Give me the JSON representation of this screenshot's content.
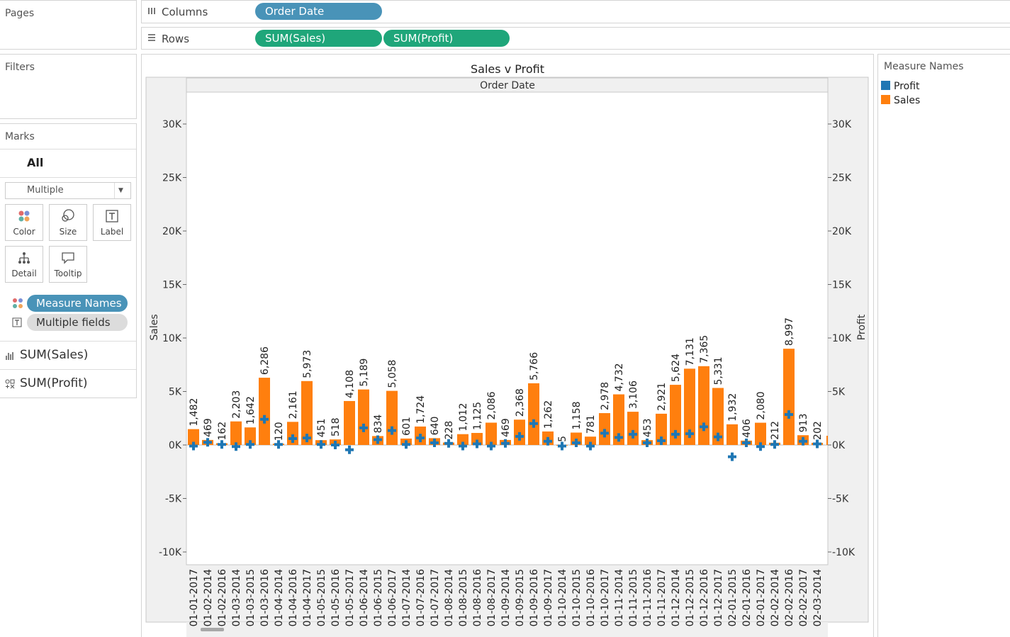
{
  "side": {
    "pages_title": "Pages",
    "filters_title": "Filters",
    "marks_title": "Marks",
    "marks_all": "All",
    "mark_type": "Multiple",
    "buttons": [
      "Color",
      "Size",
      "Label",
      "Detail",
      "Tooltip"
    ],
    "color_pill": "Measure Names",
    "label_pill": "Multiple fields",
    "rows": [
      "SUM(Sales)",
      "SUM(Profit)"
    ]
  },
  "shelves": {
    "columns_label": "Columns",
    "rows_label": "Rows",
    "columns_pill": "Order Date",
    "rows_pills": [
      "SUM(Sales)",
      "SUM(Profit)"
    ]
  },
  "legend": {
    "title": "Measure Names",
    "items": [
      {
        "name": "Profit",
        "color": "#1f77b4"
      },
      {
        "name": "Sales",
        "color": "#ff7f0e"
      }
    ]
  },
  "chart_data": {
    "type": "bar",
    "title": "Sales v Profit",
    "header": "Order Date",
    "ylabel": "Sales",
    "y2label": "Profit",
    "ylim": [
      -10000,
      30000
    ],
    "yticks": [
      "30K",
      "25K",
      "20K",
      "15K",
      "10K",
      "5K",
      "0K",
      "-5K",
      "-10K"
    ],
    "categories": [
      "01-01-2017",
      "01-02-2014",
      "01-02-2016",
      "01-03-2014",
      "01-03-2015",
      "01-03-2016",
      "01-04-2014",
      "01-04-2016",
      "01-04-2017",
      "01-05-2015",
      "01-05-2016",
      "01-05-2017",
      "01-06-2014",
      "01-06-2015",
      "01-06-2017",
      "01-07-2014",
      "01-07-2016",
      "01-07-2017",
      "01-08-2014",
      "01-08-2015",
      "01-08-2016",
      "01-08-2017",
      "01-09-2014",
      "01-09-2015",
      "01-09-2016",
      "01-09-2017",
      "01-10-2014",
      "01-10-2015",
      "01-10-2016",
      "01-10-2017",
      "01-11-2014",
      "01-11-2015",
      "01-11-2016",
      "01-11-2017",
      "01-12-2014",
      "01-12-2015",
      "01-12-2016",
      "01-12-2017",
      "02-01-2015",
      "02-01-2016",
      "02-01-2017",
      "02-02-2014",
      "02-02-2016",
      "02-02-2017",
      "02-03-2014"
    ],
    "series": [
      {
        "name": "Sales",
        "values": [
          1482,
          469,
          162,
          2203,
          1642,
          6286,
          120,
          2161,
          5973,
          451,
          518,
          4108,
          5189,
          834,
          5058,
          601,
          1724,
          640,
          228,
          1012,
          1125,
          2086,
          469,
          2368,
          5766,
          1262,
          5,
          1158,
          781,
          2978,
          4732,
          3106,
          453,
          2921,
          5624,
          7131,
          7365,
          5331,
          1932,
          406,
          2080,
          212,
          8997,
          913,
          202
        ]
      },
      {
        "name": "Profit",
        "values": [
          -100,
          250,
          50,
          -150,
          50,
          2400,
          50,
          600,
          650,
          50,
          0,
          -450,
          1600,
          500,
          1350,
          50,
          650,
          200,
          150,
          -100,
          100,
          -100,
          150,
          800,
          2000,
          350,
          -100,
          200,
          -100,
          1100,
          700,
          1000,
          200,
          400,
          1000,
          1050,
          1700,
          750,
          -1100,
          200,
          -150,
          50,
          2850,
          350,
          100
        ]
      }
    ]
  }
}
